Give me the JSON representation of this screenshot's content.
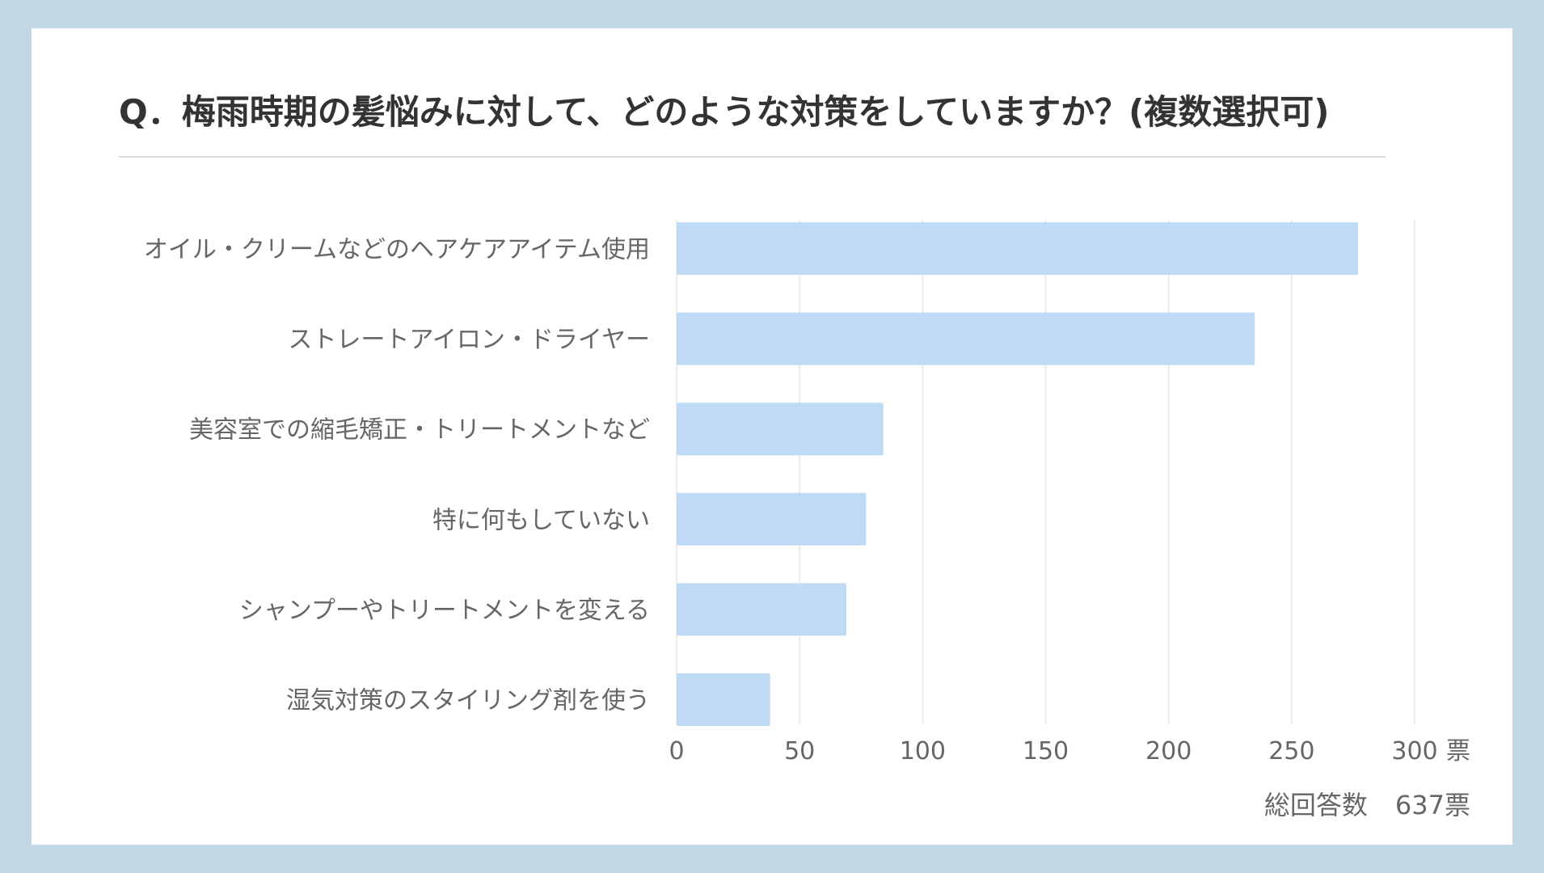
{
  "title": "Q．梅雨時期の髪悩みに対して、どのような対策をしていますか？(複数選択可)",
  "total_label": "総回答数",
  "total_value": "637票",
  "colors": {
    "background": "#c3d8e6",
    "bar": "#bfdaf5",
    "grid": "#e6e6e6",
    "text": "#666666",
    "title": "#333333"
  },
  "chart_data": {
    "type": "bar",
    "orientation": "horizontal",
    "categories": [
      "オイル・クリームなどのヘアケアアイテム使用",
      "ストレートアイロン・ドライヤー",
      "美容室での縮毛矯正・トリートメントなど",
      "特に何もしていない",
      "シャンプーやトリートメントを変える",
      "湿気対策のスタイリング剤を使う"
    ],
    "values": [
      277,
      235,
      84,
      77,
      69,
      38
    ],
    "xlim": [
      0,
      300
    ],
    "xticks": [
      "0",
      "50",
      "100",
      "150",
      "200",
      "250",
      "300"
    ],
    "unit": "票",
    "grid": true
  }
}
